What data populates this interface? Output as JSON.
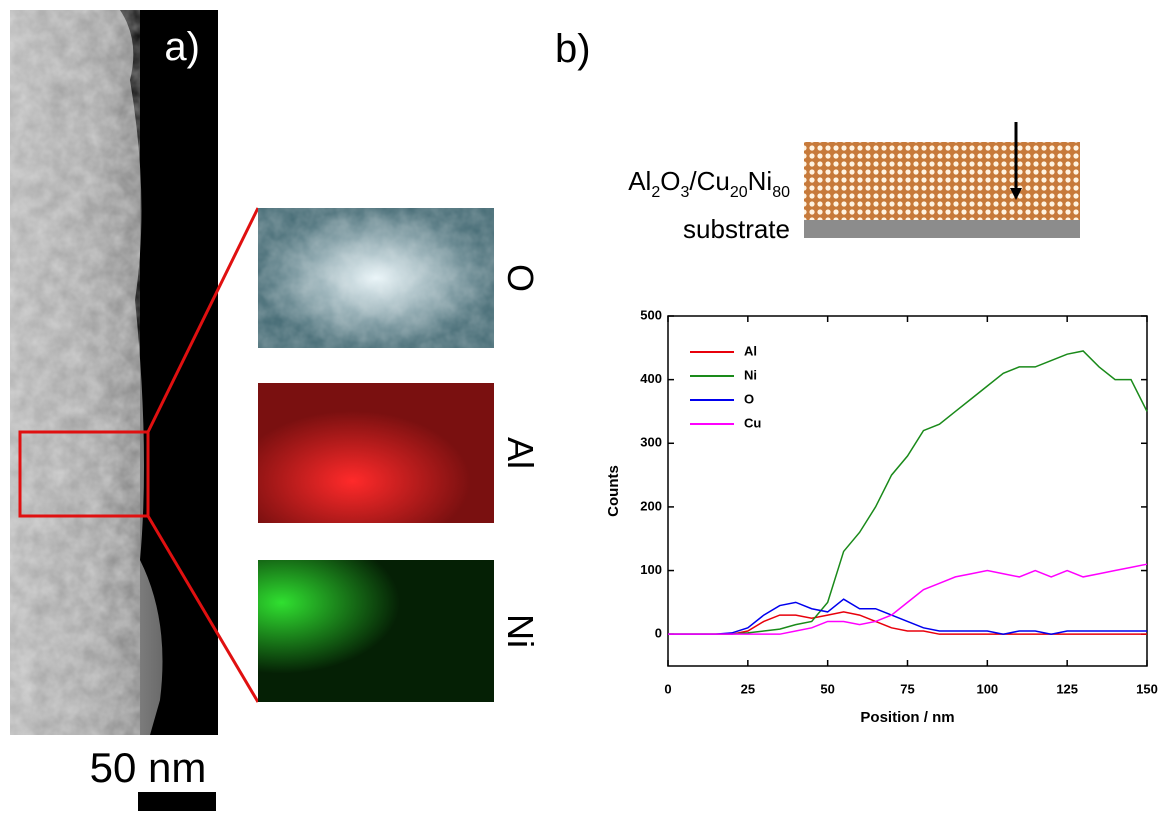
{
  "figure": {
    "panel_a": "a)",
    "panel_b": "b)",
    "scale_bar": "50 nm",
    "maps": [
      "O",
      "Al",
      "Ni"
    ],
    "sample_formula": [
      "Al",
      "2",
      "O",
      "3",
      "/Cu",
      "20",
      "Ni",
      "80"
    ],
    "substrate": "substrate"
  },
  "chart_data": {
    "type": "line",
    "x_label": "Position / nm",
    "y_label": "Counts",
    "x": [
      0,
      5,
      10,
      15,
      20,
      25,
      30,
      35,
      40,
      45,
      50,
      55,
      60,
      65,
      70,
      75,
      80,
      85,
      90,
      95,
      100,
      105,
      110,
      115,
      120,
      125,
      130,
      135,
      140,
      145,
      150
    ],
    "series": [
      {
        "name": "Al",
        "color": "#e8000b",
        "values": [
          0,
          0,
          0,
          0,
          0,
          5,
          20,
          30,
          30,
          25,
          30,
          35,
          30,
          20,
          10,
          5,
          5,
          0,
          0,
          0,
          0,
          0,
          0,
          0,
          0,
          0,
          0,
          0,
          0,
          0,
          0
        ]
      },
      {
        "name": "Ni",
        "color": "#1a8a1a",
        "values": [
          0,
          0,
          0,
          0,
          0,
          2,
          5,
          8,
          15,
          20,
          50,
          130,
          160,
          200,
          250,
          280,
          320,
          330,
          350,
          370,
          390,
          410,
          420,
          420,
          430,
          440,
          445,
          420,
          400,
          400,
          350
        ]
      },
      {
        "name": "O",
        "color": "#0000ee",
        "values": [
          0,
          0,
          0,
          0,
          2,
          10,
          30,
          45,
          50,
          40,
          35,
          55,
          40,
          40,
          30,
          20,
          10,
          5,
          5,
          5,
          5,
          0,
          5,
          5,
          0,
          5,
          5,
          5,
          5,
          5,
          5
        ]
      },
      {
        "name": "Cu",
        "color": "#ff00ff",
        "values": [
          0,
          0,
          0,
          0,
          0,
          0,
          0,
          0,
          5,
          10,
          20,
          20,
          15,
          20,
          30,
          50,
          70,
          80,
          90,
          95,
          100,
          95,
          90,
          100,
          90,
          100,
          90,
          95,
          100,
          105,
          110
        ]
      }
    ],
    "xlim": [
      0,
      150
    ],
    "ylim": [
      -50,
      500
    ],
    "xticks": [
      0,
      25,
      50,
      75,
      100,
      125,
      150
    ],
    "yticks": [
      0,
      100,
      200,
      300,
      400,
      500
    ],
    "legend": "upper-left"
  }
}
